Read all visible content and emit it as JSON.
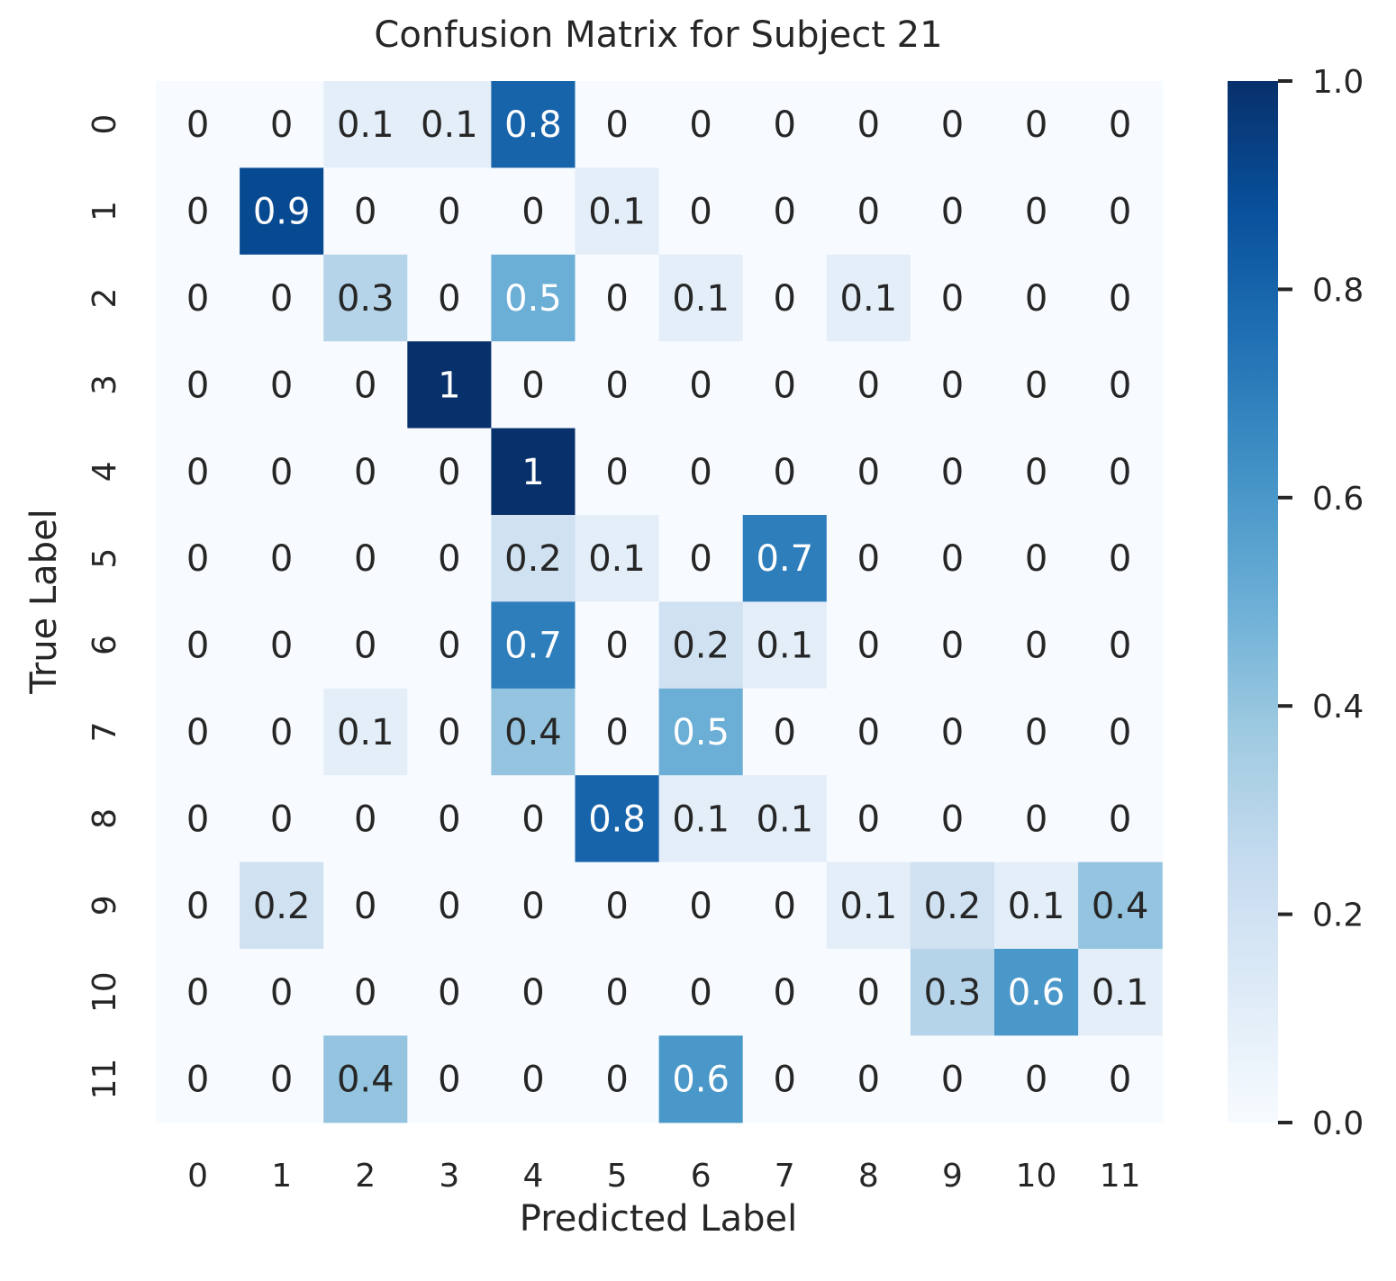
{
  "chart_data": {
    "type": "heatmap",
    "title": "Confusion Matrix for Subject 21",
    "xlabel": "Predicted Label",
    "ylabel": "True Label",
    "x_categories": [
      "0",
      "1",
      "2",
      "3",
      "4",
      "5",
      "6",
      "7",
      "8",
      "9",
      "10",
      "11"
    ],
    "y_categories": [
      "0",
      "1",
      "2",
      "3",
      "4",
      "5",
      "6",
      "7",
      "8",
      "9",
      "10",
      "11"
    ],
    "values": [
      [
        0,
        0,
        0.1,
        0.1,
        0.8,
        0,
        0,
        0,
        0,
        0,
        0,
        0
      ],
      [
        0,
        0.9,
        0,
        0,
        0,
        0.1,
        0,
        0,
        0,
        0,
        0,
        0
      ],
      [
        0,
        0,
        0.3,
        0,
        0.5,
        0,
        0.1,
        0,
        0.1,
        0,
        0,
        0
      ],
      [
        0,
        0,
        0,
        1,
        0,
        0,
        0,
        0,
        0,
        0,
        0,
        0
      ],
      [
        0,
        0,
        0,
        0,
        1,
        0,
        0,
        0,
        0,
        0,
        0,
        0
      ],
      [
        0,
        0,
        0,
        0,
        0.2,
        0.1,
        0,
        0.7,
        0,
        0,
        0,
        0
      ],
      [
        0,
        0,
        0,
        0,
        0.7,
        0,
        0.2,
        0.1,
        0,
        0,
        0,
        0
      ],
      [
        0,
        0,
        0.1,
        0,
        0.4,
        0,
        0.5,
        0,
        0,
        0,
        0,
        0
      ],
      [
        0,
        0,
        0,
        0,
        0,
        0.8,
        0.1,
        0.1,
        0,
        0,
        0,
        0
      ],
      [
        0,
        0.2,
        0,
        0,
        0,
        0,
        0,
        0,
        0.1,
        0.2,
        0.1,
        0.4
      ],
      [
        0,
        0,
        0,
        0,
        0,
        0,
        0,
        0,
        0,
        0.3,
        0.6,
        0.1
      ],
      [
        0,
        0,
        0.4,
        0,
        0,
        0,
        0.6,
        0,
        0,
        0,
        0,
        0
      ]
    ],
    "colorbar": {
      "min": 0.0,
      "max": 1.0,
      "ticks": [
        "0.0",
        "0.2",
        "0.4",
        "0.6",
        "0.8",
        "1.0"
      ],
      "colormap": "Blues"
    },
    "grid": false,
    "annotations": true
  }
}
